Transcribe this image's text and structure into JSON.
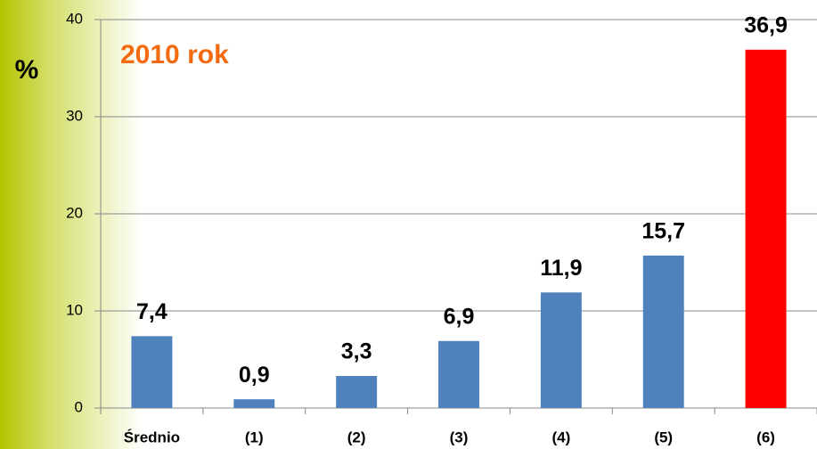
{
  "chart_data": {
    "type": "bar",
    "ylabel": "%",
    "annotation": "2010 rok",
    "categories": [
      "Średnio",
      "(1)",
      "(2)",
      "(3)",
      "(4)",
      "(5)",
      "(6)"
    ],
    "values": [
      7.4,
      0.9,
      3.3,
      6.9,
      11.9,
      15.7,
      36.9
    ],
    "value_labels": [
      "7,4",
      "0,9",
      "3,3",
      "6,9",
      "11,9",
      "15,7",
      "36,9"
    ],
    "colors": [
      "#4f81bd",
      "#4f81bd",
      "#4f81bd",
      "#4f81bd",
      "#4f81bd",
      "#4f81bd",
      "#ff0000"
    ],
    "ylim": [
      0,
      40
    ],
    "yticks": [
      0,
      10,
      20,
      30,
      40
    ],
    "grid": true
  }
}
